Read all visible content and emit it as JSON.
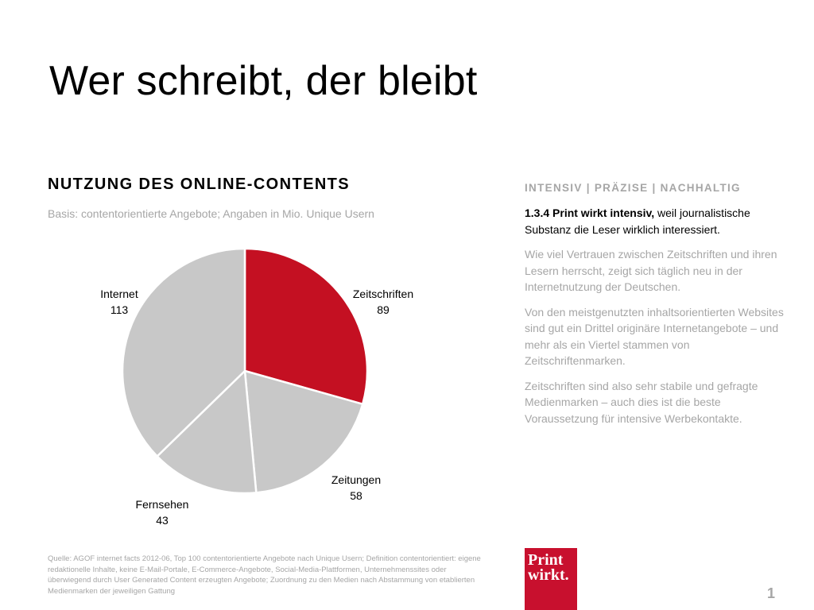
{
  "title": "Wer schreibt, der bleibt",
  "chart_data": {
    "type": "pie",
    "title": "NUTZUNG DES ONLINE-CONTENTS",
    "subtitle": "Basis: contentorientierte Angebote; Angaben in Mio. Unique Usern",
    "categories": [
      "Zeitschriften",
      "Zeitungen",
      "Fernsehen",
      "Internet"
    ],
    "values": [
      89,
      58,
      43,
      113
    ],
    "colors": [
      "#c41022",
      "#c8c8c8",
      "#c8c8c8",
      "#c8c8c8"
    ],
    "start_angle": "12 o'clock",
    "direction": "clockwise"
  },
  "side": {
    "header": "INTENSIV | PRÄZISE | NACHHALTIG",
    "lead_bold": "1.3.4 Print wirkt intensiv,",
    "lead_rest": " weil journalistische Substanz die Leser wirklich interessiert.",
    "p1": "Wie viel Vertrauen zwischen Zeitschriften und ihren Lesern herrscht, zeigt sich täglich neu in der Internetnutzung der Deutschen.",
    "p2": "Von den meistgenutzten inhaltsorientierten Websites sind gut ein Drittel originäre Internetangebote – und mehr als ein Viertel stammen von Zeitschriftenmarken.",
    "p3": "Zeitschriften sind also sehr stabile und gefragte Medienmarken – auch dies ist die beste Voraussetzung für intensive Werbekontakte."
  },
  "source": "Quelle: AGOF internet facts 2012-06, Top 100 contentorientierte Angebote nach Unique Usern; Definition contentorientiert: eigene redaktionelle Inhalte, keine E-Mail-Portale, E-Commerce-Angebote, Social-Media-Plattformen, Unternehmenssites oder überwiegend durch User Generated Content erzeugten Angebote; Zuordnung zu den Medien nach Abstammung von etablierten Medienmarken der jeweiligen Gattung",
  "logo": {
    "line1": "Print",
    "line2": "wirkt."
  },
  "page_number": "1"
}
